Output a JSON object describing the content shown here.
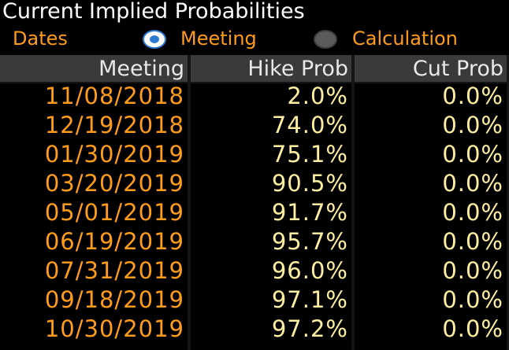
{
  "title": "Current Implied Probabilities",
  "controls": {
    "dates_label": "Dates",
    "options": [
      {
        "label": "Meeting",
        "selected": true
      },
      {
        "label": "Calculation",
        "selected": false
      }
    ]
  },
  "table": {
    "headers": [
      "Meeting",
      "Hike Prob",
      "Cut Prob"
    ],
    "rows": [
      {
        "meeting": "11/08/2018",
        "hike": "2.0%",
        "cut": "0.0%"
      },
      {
        "meeting": "12/19/2018",
        "hike": "74.0%",
        "cut": "0.0%"
      },
      {
        "meeting": "01/30/2019",
        "hike": "75.1%",
        "cut": "0.0%"
      },
      {
        "meeting": "03/20/2019",
        "hike": "90.5%",
        "cut": "0.0%"
      },
      {
        "meeting": "05/01/2019",
        "hike": "91.7%",
        "cut": "0.0%"
      },
      {
        "meeting": "06/19/2019",
        "hike": "95.7%",
        "cut": "0.0%"
      },
      {
        "meeting": "07/31/2019",
        "hike": "96.0%",
        "cut": "0.0%"
      },
      {
        "meeting": "09/18/2019",
        "hike": "97.1%",
        "cut": "0.0%"
      },
      {
        "meeting": "10/30/2019",
        "hike": "97.2%",
        "cut": "0.0%"
      }
    ]
  },
  "colors": {
    "accent": "#ff9c1a",
    "value_text": "#ffefa0",
    "header_bg": "#3a3a3a",
    "radio_selected": "#2b7bd3"
  }
}
